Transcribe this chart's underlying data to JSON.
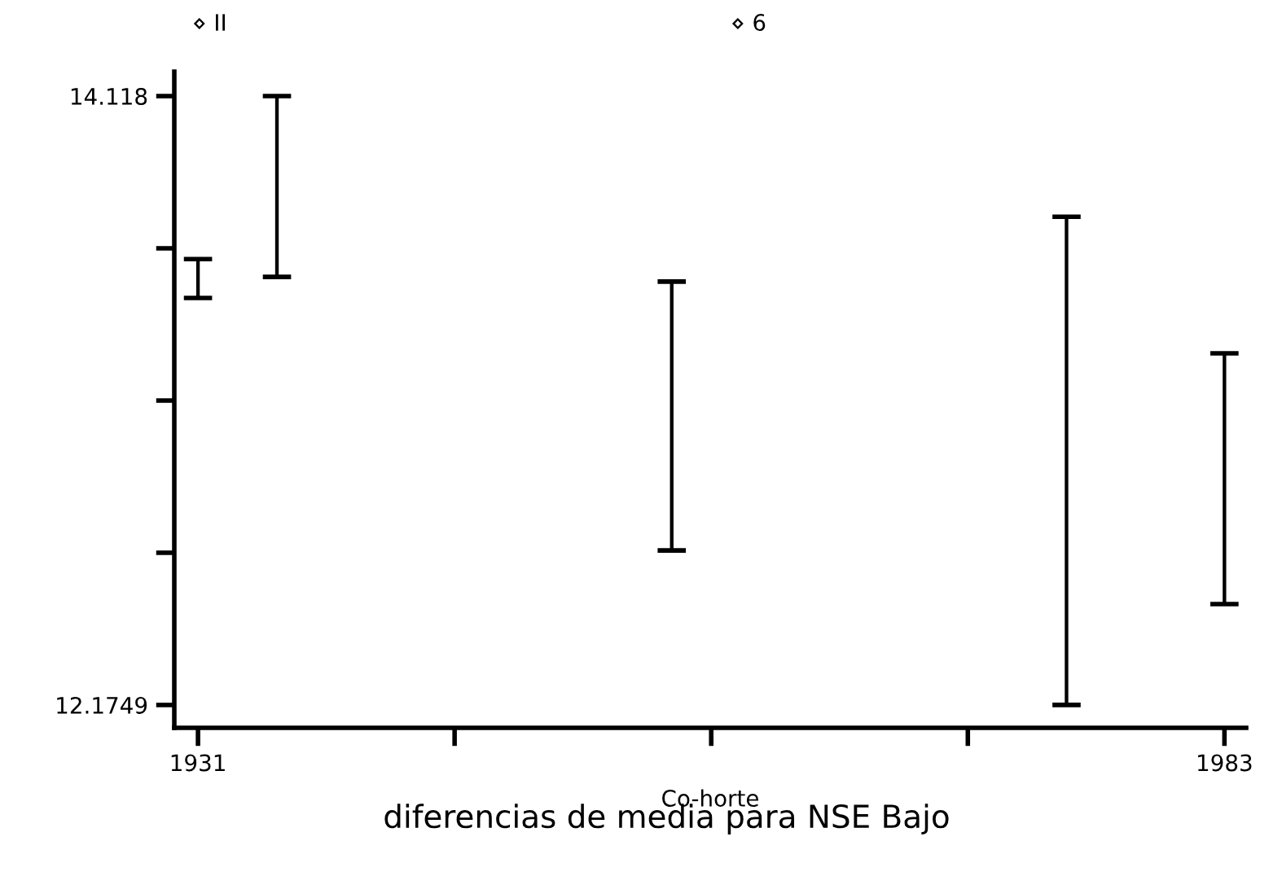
{
  "chart_data": {
    "type": "bar",
    "title": "diferencias de media para NSE Bajo",
    "xlabel": "Co-horte",
    "annotations": [
      "⋄ II",
      "⋄ 6"
    ],
    "x": [
      1931,
      1935,
      1955,
      1975,
      1983
    ],
    "series": [
      {
        "color": "#000000",
        "base": [
          13.474,
          13.541,
          12.668,
          12.175,
          12.497
        ],
        "values": [
          0.124,
          0.577,
          0.858,
          1.558,
          0.8
        ]
      }
    ],
    "xlim": [
      1929.8,
      1984.1
    ],
    "xticks": [
      1931,
      {
        "value": 1944,
        "label": null
      },
      {
        "value": 1957,
        "label": null
      },
      {
        "value": 1970,
        "label": null
      },
      1983
    ],
    "ylim": [
      12.102,
      14.196
    ],
    "yticks": [
      12.1749,
      {
        "value": 12.6607,
        "label": null
      },
      {
        "value": 13.1464,
        "label": null
      },
      {
        "value": 13.6322,
        "label": null
      },
      14.118
    ],
    "grid": false
  }
}
